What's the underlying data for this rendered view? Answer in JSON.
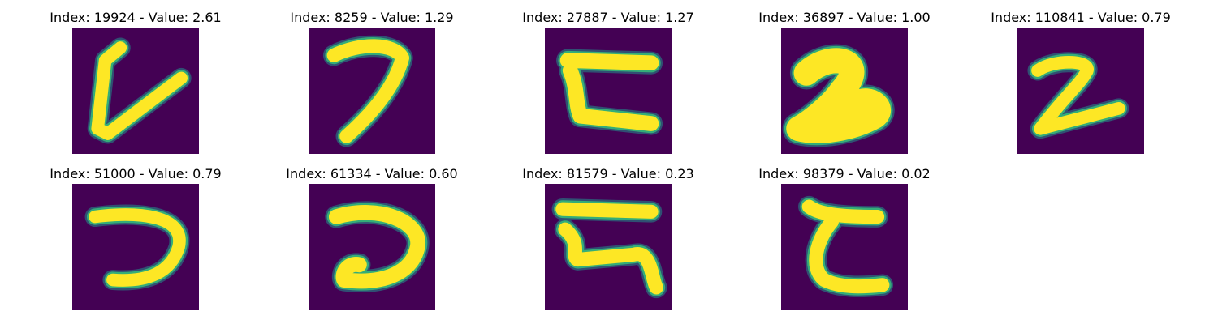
{
  "figure": {
    "background": "#ffffff",
    "thumbnail_background": "#440154",
    "stroke_colors": {
      "core": "#fde725",
      "edge": "#35b779",
      "halo": "#21918c"
    }
  },
  "chart_data": {
    "type": "image-grid",
    "grid": {
      "rows": 2,
      "cols": 5
    },
    "panels": [
      {
        "index": 19924,
        "value": 2.61,
        "title": "Index: 19924 - Value: 2.61",
        "glyph": "ᒪ-like stroke (vertical with diagonal)"
      },
      {
        "index": 8259,
        "value": 1.29,
        "title": "Index: 8259 - Value: 1.29",
        "glyph": "7-like hook"
      },
      {
        "index": 27887,
        "value": 1.27,
        "title": "Index: 27887 - Value: 1.27",
        "glyph": "ㄷ-like open shape"
      },
      {
        "index": 36897,
        "value": 1.0,
        "title": "Index: 36897 - Value: 1.00",
        "glyph": "bold 2"
      },
      {
        "index": 110841,
        "value": 0.79,
        "title": "Index: 110841 - Value: 0.79",
        "glyph": "2"
      },
      {
        "index": 51000,
        "value": 0.79,
        "title": "Index: 51000 - Value: 0.79",
        "glyph": "つ-like curve"
      },
      {
        "index": 61334,
        "value": 0.6,
        "title": "Index: 61334 - Value: 0.60",
        "glyph": "つ-like curve"
      },
      {
        "index": 81579,
        "value": 0.23,
        "title": "Index: 81579 - Value: 0.23",
        "glyph": "ス-like shape"
      },
      {
        "index": 98379,
        "value": 0.02,
        "title": "Index: 98379 - Value: 0.02",
        "glyph": "て-like curve"
      }
    ]
  }
}
